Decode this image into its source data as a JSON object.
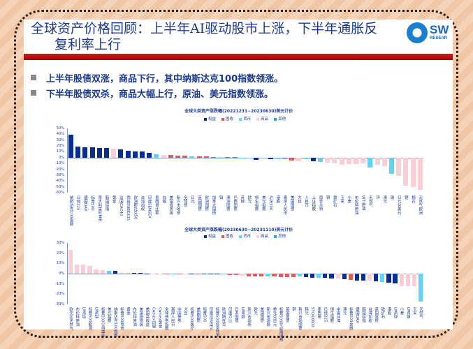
{
  "slide": {
    "title_line1": "全球资产价格回顾：上半年AI驱动股市上涨，下半年通胀反",
    "title_line2": "复利率上行",
    "logo": {
      "text": "SW",
      "sub": "RESEAR",
      "icon": "sw-logo-icon"
    },
    "bullets": [
      "上半年股债双涨，商品下行，其中纳斯达克100指数领涨。",
      "下半年股债双杀，商品大幅上行，原油、美元指数领涨。"
    ]
  },
  "colors": {
    "equity": "#0a2e8f",
    "bond": "#e05a5a",
    "fx": "#63d2f4",
    "commodity": "#f9cfd6",
    "other": "#2aa8d8"
  },
  "legend": [
    {
      "key": "equity",
      "label": "权益"
    },
    {
      "key": "bond",
      "label": "固收"
    },
    {
      "key": "fx",
      "label": "货币"
    },
    {
      "key": "commodity",
      "label": "商品"
    },
    {
      "key": "other",
      "label": "其他"
    }
  ],
  "chart_data": [
    {
      "type": "bar",
      "title": "全球大类资产涨跌幅(20221231~20230630)美元计价",
      "ylim": [
        -60,
        50
      ],
      "yticks": [
        "50%",
        "40%",
        "30%",
        "20%",
        "10%",
        "0%",
        "-10%",
        "-20%",
        "-30%",
        "-40%",
        "-50%",
        "-60%"
      ],
      "legend_position": "top-right",
      "grid": false,
      "categories": [
        "纳斯达克100指数",
        "日经225",
        "德国DAX",
        "标普500",
        "意大利富时MIB",
        "韩国综指",
        "黄金",
        "法国CAC40",
        "西班牙IBEX35",
        "欧洲斯托克50",
        "台湾加权",
        "印度SENSEX",
        "墨西哥比索",
        "白银",
        "美国投资级",
        "新兴市场债",
        "全球债",
        "日元",
        "英国国债",
        "欧洲国债",
        "加拿大国债",
        "铝",
        "澳洲国债",
        "巴西国债",
        "英镑",
        "欧元",
        "恒生指数",
        "美元指数",
        "沪深300",
        "港股",
        "离岸人民币",
        "美国国债",
        "大豆",
        "人民币",
        "上证指数",
        "南非兰特",
        "铜",
        "铁矿石",
        "玉米",
        "小麦",
        "布伦特原油",
        "WTI原油",
        "天然气",
        "锌",
        "澳元",
        "镍",
        "日元兑美元",
        "锂",
        "棉花",
        "天然气欧洲"
      ],
      "series_types": [
        "equity",
        "equity",
        "equity",
        "equity",
        "equity",
        "equity",
        "commodity",
        "equity",
        "equity",
        "equity",
        "equity",
        "equity",
        "fx",
        "commodity",
        "bond",
        "bond",
        "bond",
        "fx",
        "bond",
        "bond",
        "bond",
        "commodity",
        "bond",
        "bond",
        "fx",
        "fx",
        "equity",
        "fx",
        "equity",
        "fx",
        "equity",
        "bond",
        "commodity",
        "fx",
        "equity",
        "fx",
        "commodity",
        "commodity",
        "commodity",
        "commodity",
        "commodity",
        "commodity",
        "fx",
        "commodity",
        "commodity",
        "fx",
        "commodity",
        "commodity",
        "commodity",
        "commodity"
      ],
      "values": [
        39,
        19,
        18,
        17.5,
        17,
        16,
        15,
        14.5,
        12,
        11,
        11,
        8,
        6,
        5,
        4.5,
        3.5,
        3,
        2.5,
        2,
        2,
        1.5,
        1,
        1,
        0.5,
        -0.5,
        -1,
        -4,
        -2,
        -3,
        -2.5,
        -1.5,
        -5,
        -6,
        -3,
        -6,
        -7,
        -8,
        -10,
        -12,
        -11,
        -11,
        -10,
        -17,
        -12,
        -15,
        -28,
        -31,
        -48,
        -50,
        -55
      ]
    },
    {
      "type": "bar",
      "title": "全球大类资产涨跌幅(20230630~20231110)美元计价",
      "ylim": [
        -30,
        30
      ],
      "yticks": [
        "30%",
        "20%",
        "10%",
        "0%",
        "-10%",
        "-20%",
        "-30%"
      ],
      "legend_position": "top-right",
      "grid": false,
      "categories": [
        "欧元区天然气",
        "布伦特原油",
        "LME铅",
        "标普500能源",
        "LME铝",
        "标普500公用事业",
        "美元指数",
        "纳斯达克100指数",
        "标普500电信",
        "黄金",
        "布伦特原油",
        "美国投资级",
        "美国高收益",
        "Comex白银",
        "Comex黄金",
        "全球债券指数",
        "离岸人民币",
        "中国债券",
        "大豆",
        "标普500医疗",
        "美国国债",
        "标普500",
        "印度SENSEX",
        "标普500信息技术",
        "欧洲斯托克",
        "印度卢比",
        "日本国债",
        "LME铜",
        "新兴市场债",
        "欧元",
        "美国国债",
        "新兴市场股",
        "美元兑日元",
        "标普500非必需消费",
        "英国国债",
        "铜",
        "新兴市场国债",
        "韩元",
        "STOXX600",
        "墨西哥",
        "日经225",
        "恒生指数",
        "中国台湾",
        "澳元",
        "标普500金融",
        "德国DAX",
        "韩国综指",
        "台湾加权",
        "英国富时",
        "铁矿石",
        "港股",
        "LME锌",
        "小麦",
        "LME镍",
        "玉米",
        "天然气"
      ],
      "series_types": [
        "commodity",
        "commodity",
        "commodity",
        "commodity",
        "commodity",
        "commodity",
        "fx",
        "equity",
        "commodity",
        "commodity",
        "equity",
        "equity",
        "equity",
        "commodity",
        "commodity",
        "bond",
        "fx",
        "bond",
        "commodity",
        "equity",
        "bond",
        "equity",
        "equity",
        "equity",
        "fx",
        "bond",
        "bond",
        "commodity",
        "bond",
        "bond",
        "bond",
        "fx",
        "bond",
        "bond",
        "bond",
        "bond",
        "fx",
        "equity",
        "equity",
        "fx",
        "equity",
        "equity",
        "commodity",
        "equity",
        "bond",
        "equity",
        "equity",
        "commodity",
        "equity",
        "fx",
        "equity",
        "equity",
        "commodity",
        "commodity",
        "commodity",
        "fx"
      ],
      "values": [
        23,
        9,
        9,
        7.5,
        4,
        3.5,
        3,
        2.5,
        0.8,
        0.6,
        0.5,
        0.5,
        0.2,
        0.1,
        0.1,
        0,
        0,
        -0.2,
        -0.3,
        -0.5,
        -0.6,
        -0.7,
        -0.8,
        -0.9,
        -1,
        -1.2,
        -1.5,
        -2,
        -2.5,
        -3,
        -3,
        -3,
        -3,
        -3.2,
        -3.5,
        -3.5,
        -3,
        -3.6,
        -3.8,
        -4,
        -4.2,
        -4.5,
        -5,
        -5.2,
        -6,
        -6.5,
        -6.8,
        -7,
        -7.5,
        -8,
        -9,
        -9.5,
        -12,
        -12,
        -12,
        -27
      ]
    }
  ]
}
